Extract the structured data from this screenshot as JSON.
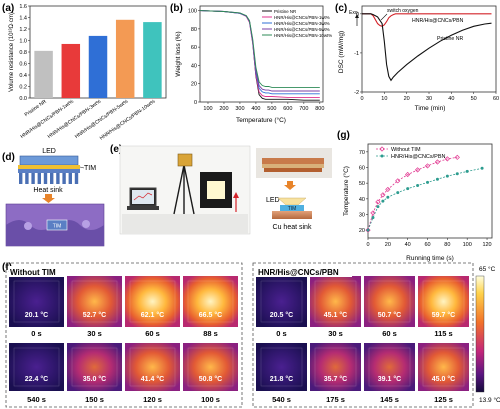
{
  "panels": {
    "a": "(a)",
    "b": "(b)",
    "c": "(c)",
    "d": "(d)",
    "e": "(e)",
    "f": "(f)",
    "g": "(g)"
  },
  "colors": {
    "red": "#d4232a",
    "pink": "#e0338e",
    "teal": "#2d9c8f",
    "frame": "#333333"
  },
  "chart_data": [
    {
      "id": "a",
      "type": "bar",
      "ylabel": "Volume resistance (10¹³Ω·cm)",
      "ylim": [
        0,
        1.6
      ],
      "yticks": [
        "0.0",
        "0.2",
        "0.4",
        "0.6",
        "0.8",
        "1.0",
        "1.2",
        "1.4",
        "1.6"
      ],
      "categories": [
        "Pristine NR",
        "HNR/His@CNCs/PBN-1wt%",
        "HNR/His@CNCs/PBN-3wt%",
        "HNR/His@CNCs/PBN-5wt%",
        "HNR/His@CNCs/PBN-10wt%"
      ],
      "values": [
        0.82,
        0.94,
        1.08,
        1.36,
        1.32
      ],
      "colors": [
        "#c0c0c0",
        "#e83a3a",
        "#2f6fd6",
        "#f39a54",
        "#3fc3bd"
      ]
    },
    {
      "id": "b",
      "type": "line",
      "xlabel": "Temperature (°C)",
      "ylabel": "Weight loss (%)",
      "xlim": [
        50,
        820
      ],
      "ylim": [
        0,
        105
      ],
      "xticks": [
        100,
        200,
        300,
        400,
        500,
        600,
        700,
        800
      ],
      "yticks": [
        0,
        20,
        40,
        60,
        80,
        100
      ],
      "series": [
        {
          "name": "Pristine NR",
          "color": "#111111",
          "x": [
            50,
            200,
            300,
            340,
            360,
            380,
            400,
            420,
            440,
            460,
            480,
            500,
            600,
            700,
            800
          ],
          "y": [
            100,
            99,
            97,
            94,
            88,
            65,
            28,
            8,
            4,
            3,
            3,
            3,
            3,
            2,
            2
          ]
        },
        {
          "name": "HNR/His@CNCs/PBN-1wt%",
          "color": "#e0338e",
          "x": [
            50,
            200,
            300,
            340,
            360,
            380,
            400,
            420,
            440,
            460,
            480,
            500,
            600,
            700,
            800
          ],
          "y": [
            100,
            99,
            97,
            93.5,
            87,
            64,
            29,
            11,
            7,
            6,
            6,
            6,
            5,
            5,
            5
          ]
        },
        {
          "name": "HNR/His@CNCs/PBN-3wt%",
          "color": "#2f6fd6",
          "x": [
            50,
            200,
            300,
            340,
            360,
            380,
            400,
            420,
            440,
            460,
            480,
            500,
            600,
            700,
            800
          ],
          "y": [
            100,
            99,
            97,
            94,
            88,
            66,
            32,
            15,
            11,
            10,
            10,
            9,
            9,
            9,
            9
          ]
        },
        {
          "name": "HNR/His@CNCs/PBN-5wt%",
          "color": "#7b3fa5",
          "x": [
            50,
            200,
            300,
            340,
            360,
            380,
            400,
            420,
            440,
            460,
            480,
            500,
            600,
            700,
            800
          ],
          "y": [
            100,
            99,
            97.5,
            94,
            88.5,
            67,
            35,
            18,
            14,
            13,
            13,
            12,
            12,
            12,
            12
          ]
        },
        {
          "name": "HNR/His@CNCs/PBN-10wt%",
          "color": "#2e8b57",
          "x": [
            50,
            200,
            300,
            340,
            360,
            380,
            400,
            420,
            440,
            460,
            480,
            500,
            600,
            700,
            800
          ],
          "y": [
            100,
            99,
            97.5,
            94.5,
            89,
            69,
            38,
            22,
            18,
            17,
            17,
            16,
            16,
            16,
            16
          ]
        }
      ]
    },
    {
      "id": "c",
      "type": "line",
      "xlabel": "Time (min)",
      "ylabel": "DSC (mW/mg)",
      "xlim": [
        0,
        60
      ],
      "ylim": [
        -2,
        0.2
      ],
      "xticks": [
        0,
        10,
        20,
        30,
        40,
        50,
        60
      ],
      "yticks": [
        0,
        -1,
        -2
      ],
      "annotations": {
        "exo": "Exo",
        "switch": "switch oxygen"
      },
      "series": [
        {
          "name": "HNR/His@CNCs/PBN",
          "color": "#d4232a",
          "x": [
            0,
            1,
            4,
            5,
            6,
            7,
            8,
            9,
            10,
            11,
            12,
            13,
            14,
            15,
            20,
            30,
            40,
            50,
            58
          ],
          "y": [
            0,
            0,
            0,
            -0.05,
            -0.15,
            -0.25,
            -0.3,
            -0.32,
            -0.28,
            -0.2,
            -0.1,
            -0.05,
            -0.02,
            0,
            0,
            0,
            0,
            0,
            0
          ]
        },
        {
          "name": "Pristine NR",
          "color": "#111111",
          "x": [
            0,
            1,
            4,
            5,
            7,
            9,
            10,
            11,
            12,
            13,
            14,
            16,
            20,
            25,
            30,
            35,
            40,
            45,
            50,
            55,
            58
          ],
          "y": [
            0,
            0,
            0,
            -0.02,
            -0.08,
            -0.25,
            -0.7,
            -1.3,
            -1.6,
            -1.7,
            -1.62,
            -1.5,
            -1.3,
            -1.08,
            -0.88,
            -0.7,
            -0.55,
            -0.42,
            -0.32,
            -0.26,
            -0.24
          ]
        }
      ]
    },
    {
      "id": "g",
      "type": "line",
      "xlabel": "Running time (s)",
      "ylabel": "Temperature (°C)",
      "xlim": [
        0,
        125
      ],
      "ylim": [
        15,
        75
      ],
      "xticks": [
        0,
        20,
        40,
        60,
        80,
        100,
        120
      ],
      "yticks": [
        20,
        30,
        40,
        50,
        60,
        70
      ],
      "series": [
        {
          "name": "Without TIM",
          "color": "#e0338e",
          "x": [
            0,
            5,
            10,
            15,
            20,
            30,
            40,
            50,
            60,
            70,
            80,
            90
          ],
          "y": [
            20,
            31,
            38,
            42.5,
            46,
            51.5,
            55.5,
            58.5,
            61,
            63.5,
            65.5,
            66.5
          ]
        },
        {
          "name": "HNR/His@CNCs/PBN",
          "color": "#2d9c8f",
          "x": [
            0,
            5,
            10,
            15,
            20,
            30,
            40,
            50,
            60,
            70,
            80,
            90,
            100,
            115
          ],
          "y": [
            20,
            28,
            35,
            38.5,
            41,
            44,
            46.5,
            48.5,
            50.5,
            52.5,
            54.5,
            56,
            57.5,
            59.5
          ]
        }
      ]
    }
  ],
  "d": {
    "led": "LED",
    "tim": "TIM",
    "sink": "Heat sink",
    "tim_small": "TIM"
  },
  "e": {
    "led": "LED",
    "tim": "TIM",
    "sink": "Cu heat sink"
  },
  "thermal": {
    "left": {
      "title": "Without TIM",
      "images": [
        {
          "temp": "20.1 °C",
          "time": "0 s"
        },
        {
          "temp": "52.7 °C",
          "time": "30 s"
        },
        {
          "temp": "62.1 °C",
          "time": "60 s"
        },
        {
          "temp": "66.5 °C",
          "time": "88 s"
        },
        {
          "temp": "22.4 °C",
          "time": "540 s"
        },
        {
          "temp": "35.0 °C",
          "time": "150 s"
        },
        {
          "temp": "41.4 °C",
          "time": "120 s"
        },
        {
          "temp": "50.8 °C",
          "time": "100 s"
        }
      ]
    },
    "right": {
      "title": "HNR/His@CNCs/PBN",
      "images": [
        {
          "temp": "20.5 °C",
          "time": "0 s"
        },
        {
          "temp": "45.1 °C",
          "time": "30 s"
        },
        {
          "temp": "50.7 °C",
          "time": "60 s"
        },
        {
          "temp": "59.7 °C",
          "time": "115 s"
        },
        {
          "temp": "21.8 °C",
          "time": "540 s"
        },
        {
          "temp": "35.7 °C",
          "time": "175 s"
        },
        {
          "temp": "39.1 °C",
          "time": "145 s"
        },
        {
          "temp": "45.0 °C",
          "time": "125 s"
        }
      ]
    },
    "scale": {
      "max": "65 °C",
      "min": "13.9 °C"
    }
  }
}
